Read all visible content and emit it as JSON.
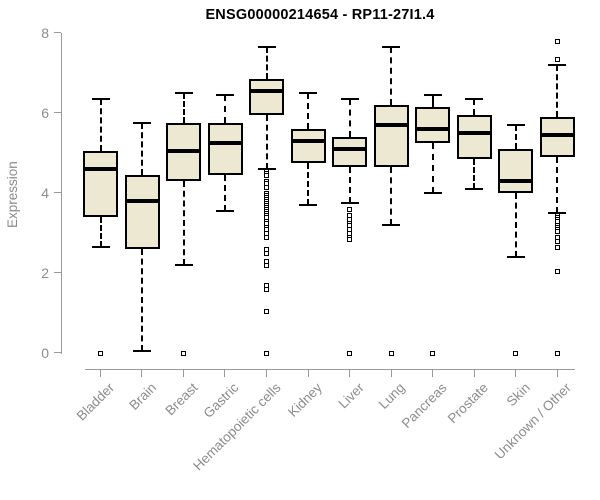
{
  "page": {
    "background": "#ffffff"
  },
  "colors": {
    "box_fill": "#ede8d1",
    "box_stroke": "#000000",
    "median": "#000000",
    "whisker": "#000000",
    "outlier_stroke": "#000000",
    "axis": "#9a9a9a",
    "tick_label": "#8c8c8c",
    "title": "#000000"
  },
  "chart_data": {
    "type": "boxplot",
    "title": "ENSG00000214654 - RP11-27I1.4",
    "xlabel": "",
    "ylabel": "Expression",
    "ylim": [
      0,
      8
    ],
    "yticks": [
      0,
      2,
      4,
      6,
      8
    ],
    "grid": false,
    "legend": "none",
    "categories": [
      "Bladder",
      "Brain",
      "Breast",
      "Gastric",
      "Hematopoietic cells",
      "Kidney",
      "Liver",
      "Lung",
      "Pancreas",
      "Prostate",
      "Skin",
      "Unknown / Other"
    ],
    "series": [
      {
        "name": "Bladder",
        "whisker_low": 2.65,
        "q1": 3.4,
        "median": 4.6,
        "q3": 5.05,
        "whisker_high": 6.35,
        "outliers": [
          0
        ]
      },
      {
        "name": "Brain",
        "whisker_low": 0.05,
        "q1": 2.6,
        "median": 3.8,
        "q3": 4.45,
        "whisker_high": 5.75,
        "outliers": []
      },
      {
        "name": "Breast",
        "whisker_low": 2.2,
        "q1": 4.3,
        "median": 5.05,
        "q3": 5.75,
        "whisker_high": 6.5,
        "outliers": [
          0
        ]
      },
      {
        "name": "Gastric",
        "whisker_low": 3.55,
        "q1": 4.45,
        "median": 5.25,
        "q3": 5.75,
        "whisker_high": 6.45,
        "outliers": []
      },
      {
        "name": "Hematopoietic cells",
        "whisker_low": 4.6,
        "q1": 5.95,
        "median": 6.55,
        "q3": 6.85,
        "whisker_high": 7.65,
        "outliers": [
          4.55,
          4.5,
          4.45,
          4.3,
          4.25,
          4.15,
          4.0,
          3.95,
          3.9,
          3.85,
          3.8,
          3.75,
          3.7,
          3.65,
          3.6,
          3.55,
          3.5,
          3.45,
          3.4,
          3.3,
          3.25,
          3.15,
          3.1,
          3.0,
          2.9,
          2.6,
          2.5,
          2.3,
          2.2,
          1.7,
          1.6,
          1.05,
          0
        ]
      },
      {
        "name": "Kidney",
        "whisker_low": 3.7,
        "q1": 4.75,
        "median": 5.3,
        "q3": 5.6,
        "whisker_high": 6.5,
        "outliers": []
      },
      {
        "name": "Liver",
        "whisker_low": 3.75,
        "q1": 4.65,
        "median": 5.1,
        "q3": 5.4,
        "whisker_high": 6.35,
        "outliers": [
          3.6,
          3.45,
          3.35,
          3.25,
          3.2,
          3.1,
          3.0,
          2.9,
          2.85,
          0
        ]
      },
      {
        "name": "Lung",
        "whisker_low": 3.2,
        "q1": 4.65,
        "median": 5.7,
        "q3": 6.2,
        "whisker_high": 7.65,
        "outliers": [
          0
        ]
      },
      {
        "name": "Pancreas",
        "whisker_low": 4.0,
        "q1": 5.25,
        "median": 5.6,
        "q3": 6.15,
        "whisker_high": 6.45,
        "outliers": [
          0
        ]
      },
      {
        "name": "Prostate",
        "whisker_low": 4.1,
        "q1": 4.85,
        "median": 5.5,
        "q3": 5.95,
        "whisker_high": 6.35,
        "outliers": []
      },
      {
        "name": "Skin",
        "whisker_low": 2.4,
        "q1": 4.0,
        "median": 4.3,
        "q3": 5.1,
        "whisker_high": 5.7,
        "outliers": [
          0
        ]
      },
      {
        "name": "Unknown / Other",
        "whisker_low": 3.5,
        "q1": 4.9,
        "median": 5.45,
        "q3": 5.9,
        "whisker_high": 7.2,
        "outliers": [
          7.8,
          7.35,
          3.45,
          3.4,
          3.35,
          3.3,
          3.2,
          3.15,
          3.1,
          3.05,
          2.9,
          2.8,
          2.65,
          2.05,
          0
        ]
      }
    ]
  }
}
